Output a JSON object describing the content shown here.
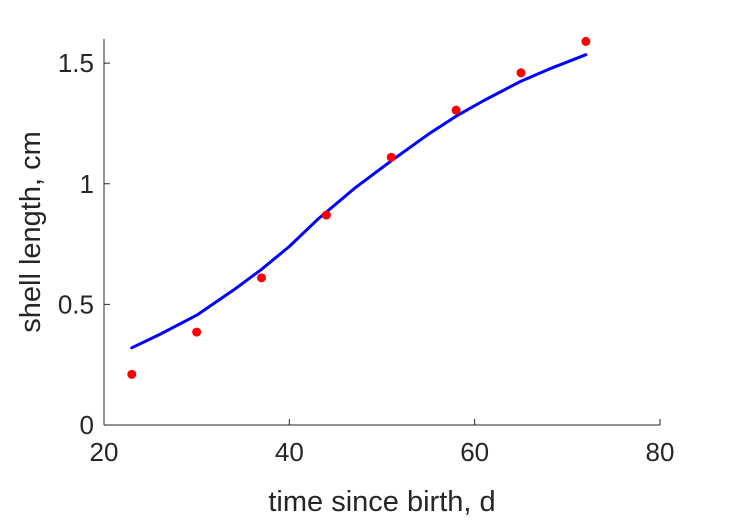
{
  "chart_data": {
    "type": "scatter",
    "title": "",
    "xlabel": "time since birth, d",
    "ylabel": "shell length, cm",
    "xlim": [
      20,
      80
    ],
    "ylim": [
      0,
      1.6
    ],
    "xticks": [
      20,
      40,
      60,
      80
    ],
    "yticks": [
      0,
      0.5,
      1,
      1.5
    ],
    "xtick_labels": [
      "20",
      "40",
      "60",
      "80"
    ],
    "ytick_labels": [
      "0",
      "0.5",
      "1",
      "1.5"
    ],
    "grid": false,
    "legend": "none",
    "series": [
      {
        "kind": "points",
        "color": "#ff0000",
        "x": [
          23,
          30,
          37,
          44,
          51,
          58,
          65,
          72
        ],
        "y": [
          0.21,
          0.385,
          0.61,
          0.87,
          1.11,
          1.305,
          1.46,
          1.59
        ]
      },
      {
        "kind": "line",
        "color": "#0000ff",
        "x": [
          23,
          26,
          30,
          34,
          37,
          40,
          43,
          47,
          51,
          55,
          58,
          61,
          65,
          68,
          72
        ],
        "y": [
          0.32,
          0.375,
          0.455,
          0.56,
          0.645,
          0.74,
          0.85,
          0.98,
          1.095,
          1.205,
          1.28,
          1.345,
          1.425,
          1.475,
          1.535
        ]
      }
    ]
  }
}
